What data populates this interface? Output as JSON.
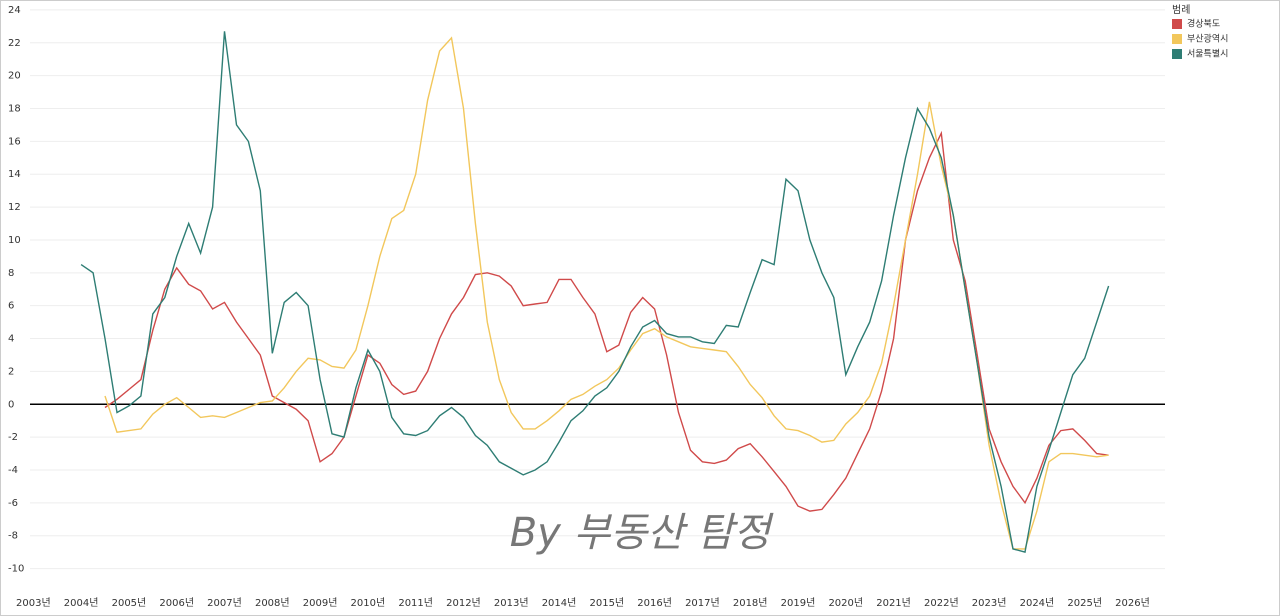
{
  "chart_data": {
    "type": "line",
    "annotation": "By 부동산 탐정",
    "legend_title": "범례",
    "legend_position": "upper right",
    "grid": true,
    "xlim": [
      2002.93,
      2026.68
    ],
    "ylim": [
      -11,
      24.3
    ],
    "xticks": [
      {
        "value": 2003,
        "label": "2003년"
      },
      {
        "value": 2004,
        "label": "2004년"
      },
      {
        "value": 2005,
        "label": "2005년"
      },
      {
        "value": 2006,
        "label": "2006년"
      },
      {
        "value": 2007,
        "label": "2007년"
      },
      {
        "value": 2008,
        "label": "2008년"
      },
      {
        "value": 2009,
        "label": "2009년"
      },
      {
        "value": 2010,
        "label": "2010년"
      },
      {
        "value": 2011,
        "label": "2011년"
      },
      {
        "value": 2012,
        "label": "2012년"
      },
      {
        "value": 2013,
        "label": "2013년"
      },
      {
        "value": 2014,
        "label": "2014년"
      },
      {
        "value": 2015,
        "label": "2015년"
      },
      {
        "value": 2016,
        "label": "2016년"
      },
      {
        "value": 2017,
        "label": "2017년"
      },
      {
        "value": 2018,
        "label": "2018년"
      },
      {
        "value": 2019,
        "label": "2019년"
      },
      {
        "value": 2020,
        "label": "2020년"
      },
      {
        "value": 2021,
        "label": "2021년"
      },
      {
        "value": 2022,
        "label": "2022년"
      },
      {
        "value": 2023,
        "label": "2023년"
      },
      {
        "value": 2024,
        "label": "2024년"
      },
      {
        "value": 2025,
        "label": "2025년"
      },
      {
        "value": 2026,
        "label": "2026년"
      }
    ],
    "yticks": [
      -10,
      -8,
      -6,
      -4,
      -2,
      0,
      2,
      4,
      6,
      8,
      10,
      12,
      14,
      16,
      18,
      20,
      22,
      24
    ],
    "x": [
      2004,
      2004.25,
      2004.5,
      2004.75,
      2005,
      2005.25,
      2005.5,
      2005.75,
      2006,
      2006.25,
      2006.5,
      2006.75,
      2007,
      2007.25,
      2007.5,
      2007.75,
      2008,
      2008.25,
      2008.5,
      2008.75,
      2009,
      2009.25,
      2009.5,
      2009.75,
      2010,
      2010.25,
      2010.5,
      2010.75,
      2011,
      2011.25,
      2011.5,
      2011.75,
      2012,
      2012.25,
      2012.5,
      2012.75,
      2013,
      2013.25,
      2013.5,
      2013.75,
      2014,
      2014.25,
      2014.5,
      2014.75,
      2015,
      2015.25,
      2015.5,
      2015.75,
      2016,
      2016.25,
      2016.5,
      2016.75,
      2017,
      2017.25,
      2017.5,
      2017.75,
      2018,
      2018.25,
      2018.5,
      2018.75,
      2019,
      2019.25,
      2019.5,
      2019.75,
      2020,
      2020.25,
      2020.5,
      2020.75,
      2021,
      2021.25,
      2021.5,
      2021.75,
      2022,
      2022.25,
      2022.5,
      2022.75,
      2023,
      2023.25,
      2023.5,
      2023.75,
      2024,
      2024.25,
      2024.5,
      2024.75,
      2025,
      2025.25,
      2025.5
    ],
    "series": [
      {
        "name": "경상북도",
        "color": "#d04a4a",
        "values": [
          null,
          null,
          -0.2,
          0.3,
          0.9,
          1.5,
          4.5,
          7,
          8.3,
          7.3,
          6.9,
          5.8,
          6.2,
          5,
          4,
          3,
          0.5,
          0.1,
          -0.3,
          -1,
          -3.5,
          -3,
          -2,
          0.5,
          3,
          2.5,
          1.2,
          0.6,
          0.8,
          2,
          4,
          5.5,
          6.5,
          7.9,
          8,
          7.8,
          7.2,
          6,
          6.1,
          6.2,
          7.6,
          7.6,
          6.5,
          5.5,
          3.2,
          3.6,
          5.6,
          6.5,
          5.8,
          3,
          -0.5,
          -2.8,
          -3.5,
          -3.6,
          -3.4,
          -2.7,
          -2.4,
          -3.2,
          -4.1,
          -5,
          -6.2,
          -6.5,
          -6.4,
          -5.5,
          -4.5,
          -3,
          -1.5,
          0.8,
          4,
          10,
          13,
          15,
          16.5,
          10,
          7.5,
          3,
          -1.5,
          -3.5,
          -5,
          -6,
          -4.5,
          -2.5,
          -1.6,
          -1.5,
          -2.2,
          -3,
          -3.1
        ]
      },
      {
        "name": "부산광역시",
        "color": "#f2c75c",
        "values": [
          null,
          null,
          0.5,
          -1.7,
          -1.6,
          -1.5,
          -0.6,
          0,
          0.4,
          -0.2,
          -0.8,
          -0.7,
          -0.8,
          -0.5,
          -0.2,
          0.1,
          0.2,
          1,
          2,
          2.8,
          2.7,
          2.3,
          2.2,
          3.3,
          6,
          9,
          11.3,
          11.8,
          14,
          18.5,
          21.5,
          22.3,
          18,
          11,
          5,
          1.5,
          -0.5,
          -1.5,
          -1.5,
          -1,
          -0.4,
          0.3,
          0.6,
          1.1,
          1.5,
          2.2,
          3.3,
          4.3,
          4.6,
          4.1,
          3.8,
          3.5,
          3.4,
          3.3,
          3.2,
          2.3,
          1.2,
          0.4,
          -0.7,
          -1.5,
          -1.6,
          -1.9,
          -2.3,
          -2.2,
          -1.2,
          -0.5,
          0.5,
          2.5,
          6,
          10,
          14,
          18.4,
          14.5,
          11.5,
          7,
          2.5,
          -2.5,
          -6,
          -8.8,
          -8.8,
          -6.5,
          -3.5,
          -3,
          -3,
          -3.1,
          -3.2,
          -3.1
        ]
      },
      {
        "name": "서울특별시",
        "color": "#2e7d74",
        "values": [
          8.5,
          8,
          4,
          -0.5,
          -0.1,
          0.5,
          5.5,
          6.5,
          9,
          11,
          9.2,
          12,
          22.7,
          17,
          16,
          13,
          3.1,
          6.2,
          6.8,
          6,
          1.5,
          -1.8,
          -2,
          1,
          3.3,
          2,
          -0.8,
          -1.8,
          -1.9,
          -1.6,
          -0.7,
          -0.2,
          -0.8,
          -1.9,
          -2.5,
          -3.5,
          -3.9,
          -4.3,
          -4,
          -3.5,
          -2.3,
          -1,
          -0.4,
          0.5,
          1,
          2,
          3.5,
          4.7,
          5.1,
          4.3,
          4.1,
          4.1,
          3.8,
          3.7,
          4.8,
          4.7,
          6.8,
          8.8,
          8.5,
          13.7,
          13,
          10,
          8,
          6.5,
          1.8,
          3.5,
          5,
          7.5,
          11.5,
          15,
          18,
          16.8,
          15,
          11.5,
          7,
          2.5,
          -2,
          -5,
          -8.8,
          -9,
          -5,
          -2.8,
          -0.5,
          1.8,
          2.8,
          5,
          7.2
        ]
      }
    ]
  }
}
